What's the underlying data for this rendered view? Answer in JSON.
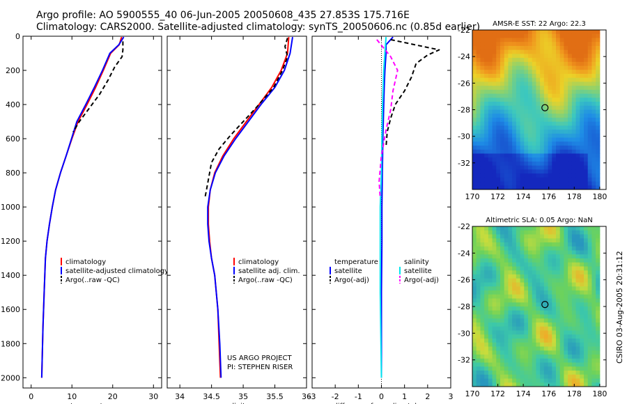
{
  "header": {
    "line1": "Argo profile: AO 5900555_40 06-Jun-2005 20050608_435 27.853S 175.716E",
    "line2": "Climatology: CARS2000. Satellite-adjusted climatology: synTS_20050606.nc (0.85d earlier)"
  },
  "side_label": "CSIRO 03-Aug-2005 20:31:12",
  "project": {
    "line1": "US ARGO PROJECT",
    "line2": "PI: STEPHEN RISER"
  },
  "colors": {
    "climatology": "#ff0000",
    "satellite": "#0000ff",
    "argo": "#000000",
    "sal_satellite": "#00e5ee",
    "sal_argo": "#ff00ff"
  },
  "chart_data": [
    {
      "type": "line",
      "xlabel": "temperature",
      "ylabel": "",
      "xlim": [
        -2,
        32
      ],
      "ylim": [
        2060,
        0
      ],
      "y_inverted": true,
      "xticks": [
        0,
        10,
        20,
        30
      ],
      "yticks": [
        0,
        200,
        400,
        600,
        800,
        1000,
        1200,
        1400,
        1600,
        1800,
        2000
      ],
      "legend": {
        "placement": "lower-right",
        "entries": [
          "climatology",
          "satellite-adjusted climatology",
          "Argo(..raw -QC)"
        ]
      },
      "series": [
        {
          "name": "climatology",
          "color": "#ff0000",
          "dash": "",
          "x": [
            22.2,
            21.6,
            19.5,
            17.7,
            15.8,
            13.7,
            11.5,
            10.0,
            8.6,
            7.2,
            6.0,
            5.2,
            4.5,
            3.9,
            3.5,
            3.2,
            2.9,
            2.6
          ],
          "y": [
            5,
            50,
            100,
            200,
            300,
            400,
            500,
            600,
            700,
            800,
            900,
            1000,
            1100,
            1200,
            1300,
            1500,
            1700,
            2000
          ]
        },
        {
          "name": "satellite-adjusted climatology",
          "color": "#0000ff",
          "dash": "",
          "x": [
            22.7,
            21.5,
            19.3,
            17.5,
            15.5,
            13.4,
            11.2,
            9.9,
            8.6,
            7.2,
            6.0,
            5.2,
            4.5,
            3.9,
            3.5,
            3.2,
            2.9,
            2.6
          ],
          "y": [
            5,
            50,
            100,
            200,
            300,
            400,
            500,
            600,
            700,
            800,
            900,
            1000,
            1100,
            1200,
            1300,
            1500,
            1700,
            2000
          ]
        },
        {
          "name": "Argo(..raw -QC)",
          "color": "#000000",
          "dash": "6,4",
          "x": [
            22.5,
            22.5,
            22.3,
            20.5,
            18.8,
            16.8,
            14.3,
            11.8,
            10.3
          ],
          "y": [
            30,
            80,
            120,
            180,
            260,
            340,
            420,
            500,
            560
          ]
        }
      ]
    },
    {
      "type": "line",
      "xlabel": "salinity",
      "ylabel": "",
      "xlim": [
        33.8,
        36.0
      ],
      "ylim": [
        2060,
        0
      ],
      "y_inverted": true,
      "xticks": [
        34,
        34.5,
        35,
        35.5,
        36
      ],
      "legend": {
        "placement": "lower-right",
        "entries": [
          "climatology",
          "satellite adj. clim.",
          "Argo(..raw -QC)"
        ]
      },
      "series": [
        {
          "name": "climatology",
          "color": "#ff0000",
          "dash": "",
          "x": [
            35.72,
            35.7,
            35.6,
            35.45,
            35.25,
            35.05,
            34.85,
            34.68,
            34.55,
            34.48,
            34.45,
            34.45,
            34.47,
            34.5,
            34.55,
            34.6,
            34.62,
            34.64
          ],
          "y": [
            5,
            100,
            200,
            300,
            400,
            500,
            600,
            700,
            800,
            900,
            1000,
            1100,
            1200,
            1300,
            1400,
            1600,
            1800,
            2000
          ]
        },
        {
          "name": "satellite adj. clim.",
          "color": "#0000ff",
          "dash": "",
          "x": [
            35.78,
            35.74,
            35.65,
            35.5,
            35.28,
            35.08,
            34.88,
            34.7,
            34.56,
            34.48,
            34.44,
            34.44,
            34.46,
            34.5,
            34.55,
            34.6,
            34.63,
            34.65
          ],
          "y": [
            5,
            100,
            200,
            300,
            400,
            500,
            600,
            700,
            800,
            900,
            1000,
            1100,
            1200,
            1300,
            1400,
            1600,
            1800,
            2000
          ]
        },
        {
          "name": "Argo(..raw -QC)",
          "color": "#000000",
          "dash": "6,4",
          "x": [
            35.7,
            35.66,
            35.7,
            35.62,
            35.48,
            35.2,
            35.0,
            34.8,
            34.62,
            34.5,
            34.46,
            34.42,
            34.4
          ],
          "y": [
            10,
            60,
            120,
            200,
            300,
            420,
            500,
            580,
            660,
            740,
            820,
            900,
            940
          ]
        }
      ]
    },
    {
      "type": "line",
      "xlabel": "difference from climatology",
      "ylabel": "",
      "xlim": [
        -3,
        3
      ],
      "ylim": [
        2060,
        0
      ],
      "y_inverted": true,
      "xticks": [
        -3,
        -2,
        -1,
        0,
        1,
        2,
        3
      ],
      "legend": {
        "placement": "lower-center",
        "entries": [
          "temperature",
          "satellite",
          "Argo(-adj)",
          "salinity",
          "satellite",
          "Argo(-adj)"
        ]
      },
      "series": [
        {
          "name": "temperature satellite",
          "color": "#0000ff",
          "dash": "",
          "x": [
            0.5,
            0.2,
            0.2,
            0.15,
            0.12,
            0.1,
            0.08,
            0.06,
            0.05,
            0.04,
            0.02,
            0.02,
            0.0,
            0.0
          ],
          "y": [
            5,
            50,
            100,
            200,
            300,
            400,
            500,
            600,
            700,
            800,
            1000,
            1200,
            1500,
            2000
          ]
        },
        {
          "name": "temperature Argo(-adj)",
          "color": "#000000",
          "dash": "6,4",
          "x": [
            0.4,
            2.5,
            2.0,
            1.5,
            1.3,
            1.0,
            0.6,
            0.4,
            0.25,
            0.2
          ],
          "y": [
            20,
            80,
            110,
            160,
            240,
            320,
            400,
            480,
            560,
            650
          ]
        },
        {
          "name": "salinity satellite",
          "color": "#00e5ee",
          "dash": "",
          "x": [
            0.2,
            0.1,
            0.05,
            0.02,
            0.0,
            -0.05,
            -0.05,
            -0.05,
            0.0
          ],
          "y": [
            5,
            200,
            400,
            600,
            800,
            1000,
            1200,
            1500,
            2000
          ]
        },
        {
          "name": "salinity Argo(-adj)",
          "color": "#ff00ff",
          "dash": "6,4",
          "x": [
            -0.2,
            0.4,
            0.7,
            0.5,
            0.4,
            0.2,
            0.0,
            -0.1,
            -0.05
          ],
          "y": [
            20,
            120,
            200,
            320,
            430,
            550,
            700,
            850,
            950
          ]
        }
      ]
    },
    {
      "type": "heatmap",
      "title": "AMSR-E SST: 22 Argo: 22.3",
      "xlim": [
        170,
        180.5
      ],
      "ylim": [
        -34,
        -22
      ],
      "xticks": [
        170,
        172,
        174,
        176,
        178,
        180
      ],
      "yticks": [
        -22,
        -24,
        -26,
        -28,
        -30,
        -32
      ],
      "marker": {
        "lon": 175.7,
        "lat": -27.85
      }
    },
    {
      "type": "heatmap",
      "title": "Altimetric SLA: 0.05 Argo: NaN",
      "xlim": [
        170,
        180.5
      ],
      "ylim": [
        -34,
        -22
      ],
      "xticks": [
        170,
        172,
        174,
        176,
        178,
        180
      ],
      "yticks": [
        -22,
        -24,
        -26,
        -28,
        -30,
        -32
      ],
      "marker": {
        "lon": 175.7,
        "lat": -27.85
      }
    }
  ]
}
